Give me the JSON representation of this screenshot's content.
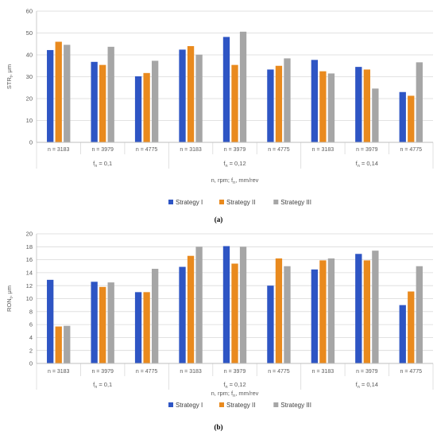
{
  "colors": {
    "strategy_1": "#2E55C4",
    "strategy_2": "#E98A1E",
    "strategy_3": "#A6A6A6",
    "grid": "#D9D9D9",
    "axis": "#BFBFBF"
  },
  "chart_data": [
    {
      "type": "bar",
      "panel_label": "(a)",
      "ylabel_main": "STR",
      "ylabel_sub": "t",
      "ylabel_unit": ", μm",
      "xlabel": "n, rpm; f",
      "xlabel_sub": "n",
      "xlabel_unit": ", mm/rev",
      "ylim": [
        0,
        60
      ],
      "yticks": [
        0,
        10,
        20,
        30,
        40,
        50,
        60
      ],
      "categories": [
        "n = 3183",
        "n = 3979",
        "n = 4775",
        "n = 3183",
        "n = 3979",
        "n = 4775",
        "n = 3183",
        "n = 3979",
        "n = 4775"
      ],
      "groups": [
        {
          "prefix": "f",
          "sub": "n",
          "suffix": " = 0,1"
        },
        {
          "prefix": "f",
          "sub": "n",
          "suffix": " = 0,12"
        },
        {
          "prefix": "f",
          "sub": "n",
          "suffix": " = 0,14"
        }
      ],
      "series": [
        {
          "name": "Strategy I",
          "values": [
            42.2,
            36.8,
            30.2,
            42.4,
            48.2,
            33.3,
            37.7,
            34.5,
            23.0
          ]
        },
        {
          "name": "Strategy II",
          "values": [
            46.0,
            35.4,
            31.7,
            44.0,
            35.4,
            35.0,
            32.5,
            33.3,
            21.3
          ]
        },
        {
          "name": "Strategy III",
          "values": [
            44.6,
            43.7,
            37.3,
            40.1,
            50.6,
            38.4,
            31.5,
            24.6,
            36.6
          ]
        }
      ],
      "legend": "bottom",
      "grid": true
    },
    {
      "type": "bar",
      "panel_label": "(b)",
      "ylabel_main": "RON",
      "ylabel_sub": "t",
      "ylabel_unit": ", μm",
      "xlabel": "n, rpm; f",
      "xlabel_sub": "n",
      "xlabel_unit": ", mm/rev",
      "ylim": [
        0,
        20
      ],
      "yticks": [
        0,
        2,
        4,
        6,
        8,
        10,
        12,
        14,
        16,
        18,
        20
      ],
      "categories": [
        "n = 3183",
        "n = 3979",
        "n = 4775",
        "n = 3183",
        "n = 3979",
        "n = 4775",
        "n = 3183",
        "n = 3979",
        "n = 4775"
      ],
      "groups": [
        {
          "prefix": "f",
          "sub": "n",
          "suffix": " = 0,1"
        },
        {
          "prefix": "f",
          "sub": "n",
          "suffix": " = 0,12"
        },
        {
          "prefix": "f",
          "sub": "n",
          "suffix": " = 0,14"
        }
      ],
      "series": [
        {
          "name": "Strategy I",
          "values": [
            12.9,
            12.6,
            11.0,
            14.9,
            18.1,
            12.0,
            14.5,
            16.9,
            9.0
          ]
        },
        {
          "name": "Strategy II",
          "values": [
            5.7,
            11.8,
            11.0,
            16.6,
            15.4,
            16.2,
            15.9,
            15.9,
            11.1
          ]
        },
        {
          "name": "Strategy III",
          "values": [
            5.8,
            12.5,
            14.6,
            18.0,
            18.0,
            15.0,
            16.2,
            17.4,
            15.0
          ]
        }
      ],
      "legend": "bottom",
      "grid": true
    }
  ]
}
